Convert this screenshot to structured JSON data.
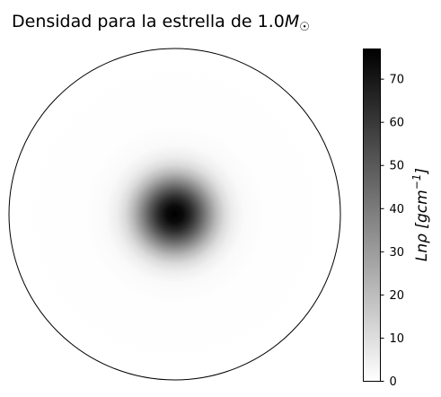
{
  "chart_data": {
    "type": "heatmap",
    "title": {
      "prefix": "Densidad para la estrella de 1.0",
      "symbol": "M",
      "subscript": "☉"
    },
    "colormap": "Greys",
    "plot": {
      "shape": "circle",
      "outline_color": "#000000",
      "peak_relative_radius": 0.0,
      "profile": [
        {
          "r": 0.0,
          "value": 77
        },
        {
          "r": 0.05,
          "value": 74
        },
        {
          "r": 0.1,
          "value": 64
        },
        {
          "r": 0.15,
          "value": 50
        },
        {
          "r": 0.2,
          "value": 35
        },
        {
          "r": 0.25,
          "value": 21
        },
        {
          "r": 0.3,
          "value": 11
        },
        {
          "r": 0.35,
          "value": 5
        },
        {
          "r": 0.42,
          "value": 1.5
        },
        {
          "r": 0.55,
          "value": 0.3
        },
        {
          "r": 1.0,
          "value": 0
        }
      ]
    },
    "colorbar": {
      "label": {
        "main": "Lnρ [gcm",
        "exponent": "−1",
        "close": "]"
      },
      "vmin": 0,
      "vmax": 77,
      "ticks": [
        0,
        10,
        20,
        30,
        40,
        50,
        60,
        70
      ],
      "tick_labels": [
        "0",
        "10",
        "20",
        "30",
        "40",
        "50",
        "60",
        "70"
      ]
    }
  }
}
